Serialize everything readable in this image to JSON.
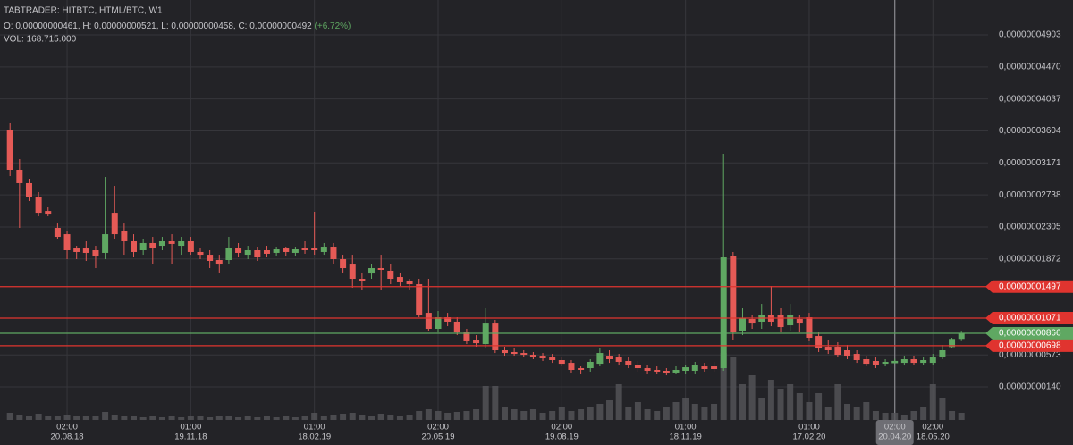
{
  "chart_data": {
    "type": "candlestick",
    "title": "TABTRADER: HITBTC, HTML/BTC, W1",
    "ohlc_text": "O: 0,00000000461, H: 0,00000000521, L: 0,00000000458, C: 0,00000000492",
    "change_text": "(+6.72%)",
    "volume_text": "VOL: 168.715.000",
    "up_color": "#5fa862",
    "down_color": "#e55a56",
    "volume_color": "#55555a",
    "grid": true,
    "categories": [
      null,
      null,
      null,
      null,
      null,
      null,
      {
        "time": "02:00",
        "date": "20.08.18"
      },
      null,
      null,
      null,
      null,
      null,
      null,
      null,
      null,
      null,
      null,
      null,
      null,
      {
        "time": "01:00",
        "date": "19.11.18"
      },
      null,
      null,
      null,
      null,
      null,
      null,
      null,
      null,
      null,
      null,
      null,
      null,
      {
        "time": "01:00",
        "date": "18.02.19"
      },
      null,
      null,
      null,
      null,
      null,
      null,
      null,
      null,
      null,
      null,
      null,
      null,
      {
        "time": "02:00",
        "date": "20.05.19"
      },
      null,
      null,
      null,
      null,
      null,
      null,
      null,
      null,
      null,
      null,
      null,
      null,
      {
        "time": "02:00",
        "date": "19.08.19"
      },
      null,
      null,
      null,
      null,
      null,
      null,
      null,
      null,
      null,
      null,
      null,
      null,
      {
        "time": "01:00",
        "date": "18.11.19"
      },
      null,
      null,
      null,
      null,
      null,
      null,
      null,
      null,
      null,
      null,
      null,
      null,
      {
        "time": "01:00",
        "date": "17.02.20"
      },
      null,
      null,
      null,
      null,
      null,
      null,
      null,
      null,
      {
        "time": "02:00",
        "date": "20.04.20",
        "highlight": true
      },
      null,
      null,
      null,
      {
        "time": "02:00",
        "date": "18.05.20"
      },
      null,
      null,
      null
    ],
    "open": [
      3.622e-08,
      3.078e-08,
      2.897e-08,
      2.715e-08,
      2.521e-08,
      2.292e-08,
      2.207e-08,
      2.014e-08,
      2.014e-08,
      1.99e-08,
      1.954e-08,
      2.497e-08,
      2.256e-08,
      2.111e-08,
      1.99e-08,
      2.087e-08,
      2.05e-08,
      2.111e-08,
      2.05e-08,
      2.111e-08,
      1.966e-08,
      1.929e-08,
      1.857e-08,
      1.857e-08,
      2.026e-08,
      1.929e-08,
      1.99e-08,
      1.99e-08,
      1.954e-08,
      2.014e-08,
      1.954e-08,
      2.014e-08,
      2.014e-08,
      1.966e-08,
      2.038e-08,
      1.869e-08,
      1.796e-08,
      1.603e-08,
      1.675e-08,
      1.748e-08,
      1.712e-08,
      1.627e-08,
      1.567e-08,
      1.53e-08,
      1.143e-08,
      9.26e-09,
      1.083e-08,
      1.023e-08,
      8.77e-09,
      7.81e-09,
      7.2e-09,
      9.98e-09,
      6.36e-09,
      6.12e-09,
      5.99e-09,
      5.75e-09,
      5.63e-09,
      5.39e-09,
      5.03e-09,
      4.66e-09,
      3.94e-09,
      3.94e-09,
      4.54e-09,
      5.63e-09,
      5.39e-09,
      4.91e-09,
      4.42e-09,
      3.94e-09,
      3.7e-09,
      3.58e-09,
      3.34e-09,
      3.58e-09,
      3.58e-09,
      4.18e-09,
      4.18e-09,
      3.94e-09,
      1.917e-08,
      9.02e-09,
      1.059e-08,
      1.023e-08,
      1.119e-08,
      1.119e-08,
      9.74e-09,
      1.059e-08,
      1.083e-08,
      8.29e-09,
      6.84e-09,
      6.84e-09,
      6.36e-09,
      5.87e-09,
      5.15e-09,
      4.91e-09,
      4.54e-09,
      4.61e-09,
      4.66e-09,
      5.15e-09,
      4.66e-09,
      4.66e-09,
      5.39e-09,
      6.8e-09,
      7.9e-09
    ],
    "high": [
      3.707e-08,
      3.223e-08,
      2.957e-08,
      2.776e-08,
      2.57e-08,
      2.352e-08,
      2.256e-08,
      2.05e-08,
      2.111e-08,
      2.05e-08,
      2.981e-08,
      2.86e-08,
      2.352e-08,
      2.207e-08,
      2.135e-08,
      2.171e-08,
      2.171e-08,
      2.207e-08,
      2.171e-08,
      2.171e-08,
      2.014e-08,
      1.99e-08,
      1.929e-08,
      2.171e-08,
      2.087e-08,
      2.05e-08,
      2.038e-08,
      2.05e-08,
      2.038e-08,
      2.038e-08,
      2.038e-08,
      2.111e-08,
      2.51e-08,
      2.087e-08,
      2.087e-08,
      1.929e-08,
      1.929e-08,
      1.688e-08,
      1.808e-08,
      1.929e-08,
      1.808e-08,
      1.688e-08,
      1.603e-08,
      1.603e-08,
      1.603e-08,
      1.168e-08,
      1.143e-08,
      1.083e-08,
      9.26e-09,
      8.41e-09,
      1.204e-08,
      1.047e-08,
      6.84e-09,
      6.6e-09,
      6.36e-09,
      6.12e-09,
      5.99e-09,
      5.87e-09,
      5.39e-09,
      5.03e-09,
      4.18e-09,
      5.15e-09,
      6.6e-09,
      6.36e-09,
      5.87e-09,
      5.39e-09,
      4.91e-09,
      4.42e-09,
      4.18e-09,
      3.94e-09,
      4.18e-09,
      4.42e-09,
      4.79e-09,
      4.66e-09,
      4.79e-09,
      3.296e-08,
      1.966e-08,
      1.204e-08,
      1.119e-08,
      1.264e-08,
      1.506e-08,
      1.204e-08,
      1.264e-08,
      1.119e-08,
      1.143e-08,
      8.77e-09,
      7.81e-09,
      7.45e-09,
      7.08e-09,
      6.36e-09,
      5.63e-09,
      5.39e-09,
      5.15e-09,
      5.21e-09,
      5.63e-09,
      5.63e-09,
      5.39e-09,
      5.87e-09,
      7.08e-09,
      8.05e-09,
      9e-09
    ],
    "low": [
      2.993e-08,
      2.292e-08,
      2.655e-08,
      2.449e-08,
      2.449e-08,
      2.135e-08,
      1.869e-08,
      1.869e-08,
      1.845e-08,
      1.748e-08,
      1.869e-08,
      2.135e-08,
      1.929e-08,
      1.893e-08,
      1.929e-08,
      1.808e-08,
      1.99e-08,
      1.808e-08,
      1.929e-08,
      1.929e-08,
      1.869e-08,
      1.748e-08,
      1.688e-08,
      1.808e-08,
      1.893e-08,
      1.869e-08,
      1.845e-08,
      1.893e-08,
      1.917e-08,
      1.917e-08,
      1.917e-08,
      1.942e-08,
      1.929e-08,
      1.929e-08,
      1.808e-08,
      1.688e-08,
      1.482e-08,
      1.446e-08,
      1.603e-08,
      1.446e-08,
      1.53e-08,
      1.506e-08,
      1.446e-08,
      1.083e-08,
      9.02e-09,
      8.77e-09,
      9.62e-09,
      8.41e-09,
      7.2e-09,
      6.84e-09,
      6.6e-09,
      5.99e-09,
      5.63e-09,
      5.63e-09,
      5.39e-09,
      5.15e-09,
      4.91e-09,
      4.66e-09,
      4.18e-09,
      3.34e-09,
      3.22e-09,
      3.46e-09,
      4.18e-09,
      4.66e-09,
      4.3e-09,
      3.94e-09,
      3.46e-09,
      3.22e-09,
      3.1e-09,
      2.97e-09,
      3.1e-09,
      3.22e-09,
      3.22e-09,
      3.46e-09,
      3.46e-09,
      3.58e-09,
      7.81e-09,
      8.41e-09,
      9.26e-09,
      9.26e-09,
      9.62e-09,
      8.77e-09,
      9.02e-09,
      8.77e-09,
      7.57e-09,
      6.12e-09,
      5.87e-09,
      5.39e-09,
      5.15e-09,
      4.66e-09,
      4.18e-09,
      3.94e-09,
      4.18e-09,
      4.58e-09,
      4.3e-09,
      4.3e-09,
      4.42e-09,
      4.3e-09,
      5.15e-09,
      6.6e-09,
      7.6e-09
    ],
    "close": [
      3.078e-08,
      2.897e-08,
      2.715e-08,
      2.497e-08,
      2.473e-08,
      2.171e-08,
      1.99e-08,
      1.966e-08,
      1.954e-08,
      1.905e-08,
      2.207e-08,
      2.207e-08,
      2.111e-08,
      1.966e-08,
      2.087e-08,
      2.014e-08,
      2.111e-08,
      2.075e-08,
      2.111e-08,
      1.966e-08,
      1.929e-08,
      1.845e-08,
      1.796e-08,
      2.026e-08,
      1.954e-08,
      1.99e-08,
      1.893e-08,
      1.942e-08,
      2.002e-08,
      1.966e-08,
      2.002e-08,
      1.99e-08,
      1.99e-08,
      2.038e-08,
      1.869e-08,
      1.748e-08,
      1.603e-08,
      1.567e-08,
      1.748e-08,
      1.724e-08,
      1.603e-08,
      1.555e-08,
      1.53e-08,
      1.119e-08,
      9.26e-09,
      1.083e-08,
      1.023e-08,
      8.77e-09,
      7.57e-09,
      7.32e-09,
      9.98e-09,
      6.36e-09,
      5.99e-09,
      5.87e-09,
      5.75e-09,
      5.51e-09,
      5.27e-09,
      5.03e-09,
      4.54e-09,
      3.7e-09,
      3.7e-09,
      4.79e-09,
      5.99e-09,
      5.15e-09,
      4.79e-09,
      4.42e-09,
      3.94e-09,
      3.58e-09,
      3.46e-09,
      3.34e-09,
      3.7e-09,
      4.06e-09,
      4.42e-09,
      3.82e-09,
      3.82e-09,
      1.893e-08,
      8.77e-09,
      1.071e-08,
      9.98e-09,
      1.119e-08,
      1.023e-08,
      9.5e-09,
      1.119e-08,
      9.98e-09,
      8.05e-09,
      6.6e-09,
      6.36e-09,
      5.75e-09,
      5.63e-09,
      5.03e-09,
      4.54e-09,
      4.42e-09,
      4.79e-09,
      4.92e-09,
      5.15e-09,
      4.66e-09,
      5.03e-09,
      5.39e-09,
      6.36e-09,
      7.9e-09,
      8.66e-09
    ],
    "volume": [
      168000000.0,
      126000000.0,
      105000000.0,
      147000000.0,
      105000000.0,
      84000000.0,
      126000000.0,
      105000000.0,
      84000000.0,
      105000000.0,
      189000000.0,
      126000000.0,
      84000000.0,
      84000000.0,
      63000000.0,
      84000000.0,
      63000000.0,
      84000000.0,
      63000000.0,
      84000000.0,
      84000000.0,
      63000000.0,
      84000000.0,
      105000000.0,
      63000000.0,
      84000000.0,
      63000000.0,
      84000000.0,
      63000000.0,
      84000000.0,
      63000000.0,
      105000000.0,
      168000000.0,
      105000000.0,
      126000000.0,
      147000000.0,
      168000000.0,
      126000000.0,
      105000000.0,
      147000000.0,
      126000000.0,
      105000000.0,
      126000000.0,
      210000000.0,
      252000000.0,
      210000000.0,
      168000000.0,
      189000000.0,
      210000000.0,
      252000000.0,
      798000000.0,
      798000000.0,
      315000000.0,
      252000000.0,
      210000000.0,
      252000000.0,
      168000000.0,
      210000000.0,
      294000000.0,
      210000000.0,
      252000000.0,
      294000000.0,
      378000000.0,
      462000000.0,
      840000000.0,
      315000000.0,
      420000000.0,
      252000000.0,
      210000000.0,
      294000000.0,
      420000000.0,
      525000000.0,
      378000000.0,
      315000000.0,
      378000000.0,
      1575000000.0,
      1470000000.0,
      840000000.0,
      1050000000.0,
      525000000.0,
      945000000.0,
      735000000.0,
      840000000.0,
      630000000.0,
      420000000.0,
      630000000.0,
      315000000.0,
      840000000.0,
      378000000.0,
      315000000.0,
      420000000.0,
      210000000.0,
      168000000.0,
      168715000,
      126000000.0,
      210000000.0,
      315000000.0,
      840000000.0,
      525000000.0,
      210000000.0,
      168000000.0
    ],
    "volume_lim": [
      0,
      9870000000.0
    ],
    "ylim": [
      -3.07e-09,
      5.375e-08
    ],
    "yticks": [
      {
        "value": 4.903e-08,
        "label": "0,00000004903"
      },
      {
        "value": 4.47e-08,
        "label": "0,00000004470"
      },
      {
        "value": 4.037e-08,
        "label": "0,00000004037"
      },
      {
        "value": 3.604e-08,
        "label": "0,00000003604"
      },
      {
        "value": 3.171e-08,
        "label": "0,00000003171"
      },
      {
        "value": 2.738e-08,
        "label": "0,00000002738"
      },
      {
        "value": 2.305e-08,
        "label": "0,00000002305"
      },
      {
        "value": 1.872e-08,
        "label": "0,00000001872"
      },
      {
        "value": 5.73e-09,
        "label": "0,00000000573"
      },
      {
        "value": 1.4e-09,
        "label": "0,00000000140"
      }
    ],
    "price_lines": [
      {
        "value": 1.497e-08,
        "label": "0,00000001497",
        "color": "#e0342f"
      },
      {
        "value": 1.071e-08,
        "label": "0,00000001071",
        "color": "#e0342f"
      },
      {
        "value": 8.66e-09,
        "label": "0,00000000866",
        "color": "#5fa862"
      },
      {
        "value": 6.98e-09,
        "label": "0,00000000698",
        "color": "#e0342f"
      }
    ]
  }
}
